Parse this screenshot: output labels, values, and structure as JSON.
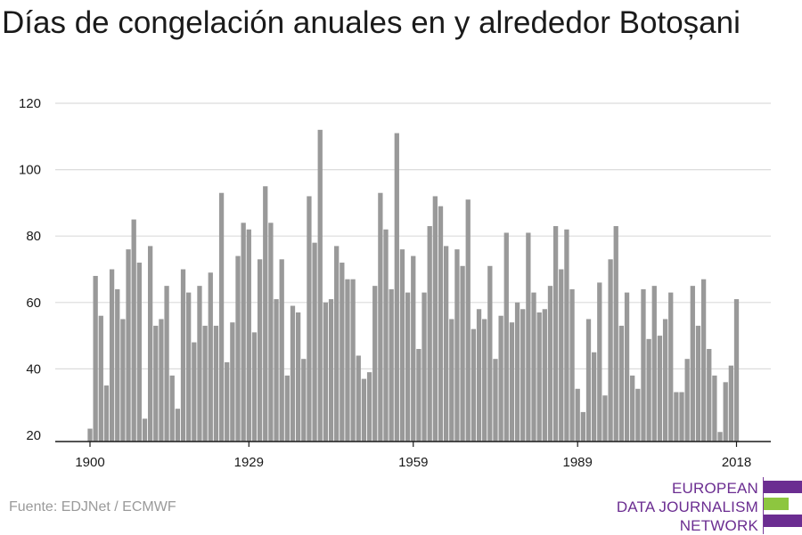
{
  "chart_data": {
    "type": "bar",
    "title": "Días de congelación anuales en y alrededor Botoșani",
    "xlabel": "",
    "ylabel": "",
    "ylim": [
      20,
      120
    ],
    "xlim": [
      1900,
      2018
    ],
    "y_ticks": [
      20,
      40,
      60,
      80,
      100,
      120
    ],
    "x_ticks": [
      1900,
      1929,
      1959,
      1989,
      2018
    ],
    "grid": true,
    "color": "#999999",
    "x": [
      1900,
      1901,
      1902,
      1903,
      1904,
      1905,
      1906,
      1907,
      1908,
      1909,
      1910,
      1911,
      1912,
      1913,
      1914,
      1915,
      1916,
      1917,
      1918,
      1919,
      1920,
      1921,
      1922,
      1923,
      1924,
      1925,
      1926,
      1927,
      1928,
      1929,
      1930,
      1931,
      1932,
      1933,
      1934,
      1935,
      1936,
      1937,
      1938,
      1939,
      1940,
      1941,
      1942,
      1943,
      1944,
      1945,
      1946,
      1947,
      1948,
      1949,
      1950,
      1951,
      1952,
      1953,
      1954,
      1955,
      1956,
      1957,
      1958,
      1959,
      1960,
      1961,
      1962,
      1963,
      1964,
      1965,
      1966,
      1967,
      1968,
      1969,
      1970,
      1971,
      1972,
      1973,
      1974,
      1975,
      1976,
      1977,
      1978,
      1979,
      1980,
      1981,
      1982,
      1983,
      1984,
      1985,
      1986,
      1987,
      1988,
      1989,
      1990,
      1991,
      1992,
      1993,
      1994,
      1995,
      1996,
      1997,
      1998,
      1999,
      2000,
      2001,
      2002,
      2003,
      2004,
      2005,
      2006,
      2007,
      2008,
      2009,
      2010,
      2011,
      2012,
      2013,
      2014,
      2015,
      2016,
      2017,
      2018
    ],
    "values": [
      22,
      68,
      56,
      35,
      70,
      64,
      55,
      76,
      85,
      72,
      25,
      77,
      53,
      55,
      65,
      38,
      28,
      70,
      63,
      48,
      65,
      53,
      69,
      53,
      93,
      42,
      54,
      74,
      84,
      82,
      51,
      73,
      95,
      84,
      61,
      73,
      38,
      59,
      57,
      43,
      92,
      78,
      112,
      60,
      61,
      77,
      72,
      67,
      67,
      44,
      37,
      39,
      65,
      93,
      82,
      64,
      111,
      76,
      63,
      74,
      46,
      63,
      83,
      92,
      89,
      77,
      55,
      76,
      71,
      91,
      52,
      58,
      55,
      71,
      43,
      56,
      81,
      54,
      60,
      58,
      81,
      63,
      57,
      58,
      65,
      83,
      70,
      82,
      64,
      34,
      27,
      55,
      45,
      66,
      32,
      73,
      83,
      53,
      63,
      38,
      34,
      64,
      49,
      65,
      50,
      55,
      63,
      33,
      33,
      43,
      65,
      53,
      67,
      46,
      38,
      21,
      36,
      41,
      61
    ]
  },
  "source": "Fuente: EDJNet / ECMWF",
  "logo": {
    "line1": "EUROPEAN",
    "line2": "DATA JOURNALISM",
    "line3": "NETWORK",
    "colors": {
      "purple": "#6b2d91",
      "green": "#8dc63f"
    }
  }
}
